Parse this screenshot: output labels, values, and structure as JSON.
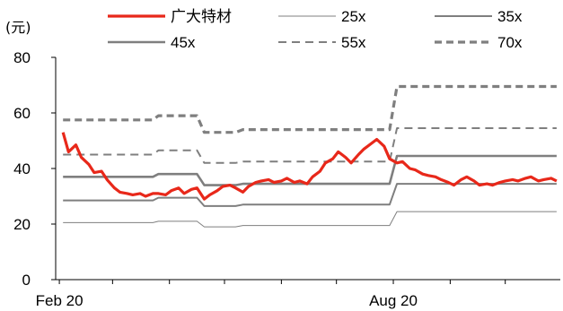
{
  "chart_data": {
    "type": "line",
    "unit_label": "(元)",
    "ylim": [
      0,
      80
    ],
    "yticks": [
      0,
      20,
      40,
      60,
      80
    ],
    "xtick_labels": [
      "Feb 20",
      "Aug 20"
    ],
    "grid": false,
    "legend_position": "top",
    "x": [
      "2020-02-03",
      "2020-02-06",
      "2020-02-10",
      "2020-02-13",
      "2020-02-17",
      "2020-02-20",
      "2020-02-24",
      "2020-02-27",
      "2020-03-02",
      "2020-03-05",
      "2020-03-09",
      "2020-03-12",
      "2020-03-16",
      "2020-03-19",
      "2020-03-23",
      "2020-03-26",
      "2020-03-30",
      "2020-04-02",
      "2020-04-06",
      "2020-04-09",
      "2020-04-13",
      "2020-04-16",
      "2020-04-20",
      "2020-04-23",
      "2020-04-27",
      "2020-04-30",
      "2020-05-04",
      "2020-05-07",
      "2020-05-11",
      "2020-05-14",
      "2020-05-18",
      "2020-05-21",
      "2020-05-25",
      "2020-05-28",
      "2020-06-01",
      "2020-06-04",
      "2020-06-08",
      "2020-06-11",
      "2020-06-15",
      "2020-06-18",
      "2020-06-22",
      "2020-06-25",
      "2020-06-29",
      "2020-07-02",
      "2020-07-06",
      "2020-07-09",
      "2020-07-13",
      "2020-07-16",
      "2020-07-20",
      "2020-07-23",
      "2020-07-27",
      "2020-07-30",
      "2020-08-03",
      "2020-08-06",
      "2020-08-10",
      "2020-08-13",
      "2020-08-17",
      "2020-08-20",
      "2020-08-24",
      "2020-08-27",
      "2020-08-31",
      "2020-09-03",
      "2020-09-07",
      "2020-09-10",
      "2020-09-14",
      "2020-09-17",
      "2020-09-21",
      "2020-09-24",
      "2020-09-28",
      "2020-10-01",
      "2020-10-05",
      "2020-10-08",
      "2020-10-12",
      "2020-10-15",
      "2020-10-19",
      "2020-10-22",
      "2020-10-26",
      "2020-10-29"
    ],
    "series": [
      {
        "name": "广大特材",
        "color": "#e8281a",
        "dash": "solid",
        "width": 3.2,
        "values": [
          53.0,
          46.0,
          48.5,
          44.0,
          41.5,
          38.5,
          39.0,
          36.0,
          33.0,
          31.5,
          31.0,
          30.5,
          31.0,
          30.0,
          31.0,
          31.0,
          30.5,
          32.0,
          33.0,
          31.0,
          32.5,
          33.0,
          29.0,
          30.5,
          32.0,
          33.5,
          34.0,
          33.0,
          31.5,
          33.5,
          35.0,
          35.5,
          36.0,
          35.0,
          35.5,
          36.5,
          35.0,
          35.5,
          34.5,
          37.0,
          39.0,
          42.0,
          43.5,
          46.0,
          44.0,
          42.0,
          45.0,
          47.0,
          49.0,
          50.5,
          48.0,
          43.5,
          42.0,
          42.5,
          40.0,
          39.5,
          38.0,
          37.5,
          37.0,
          36.0,
          35.0,
          34.0,
          36.0,
          37.0,
          35.5,
          34.0,
          34.5,
          34.0,
          35.0,
          35.5,
          36.0,
          35.5,
          36.5,
          37.0,
          35.5,
          36.0,
          36.5,
          35.5
        ]
      },
      {
        "name": "25x",
        "color": "#7f7f7f",
        "dash": "solid",
        "width": 1,
        "values": [
          20.5,
          20.5,
          20.5,
          20.5,
          20.5,
          20.5,
          20.5,
          20.5,
          20.5,
          20.5,
          20.5,
          20.5,
          20.5,
          20.5,
          20.5,
          21.0,
          21.0,
          21.0,
          21.0,
          21.0,
          21.0,
          21.0,
          19.0,
          19.0,
          19.0,
          19.0,
          19.0,
          19.0,
          19.5,
          19.5,
          19.5,
          19.5,
          19.5,
          19.5,
          19.5,
          19.5,
          19.5,
          19.5,
          19.5,
          19.5,
          19.5,
          19.5,
          19.5,
          19.5,
          19.5,
          19.5,
          19.5,
          19.5,
          19.5,
          19.5,
          19.5,
          19.5,
          24.5,
          24.5,
          24.5,
          24.5,
          24.5,
          24.5,
          24.5,
          24.5,
          24.5,
          24.5,
          24.5,
          24.5,
          24.5,
          24.5,
          24.5,
          24.5,
          24.5,
          24.5,
          24.5,
          24.5,
          24.5,
          24.5,
          24.5,
          24.5,
          24.5,
          24.5
        ]
      },
      {
        "name": "35x",
        "color": "#7f7f7f",
        "dash": "solid",
        "width": 2,
        "values": [
          28.5,
          28.5,
          28.5,
          28.5,
          28.5,
          28.5,
          28.5,
          28.5,
          28.5,
          28.5,
          28.5,
          28.5,
          28.5,
          28.5,
          28.5,
          29.5,
          29.5,
          29.5,
          29.5,
          29.5,
          29.5,
          29.5,
          26.5,
          26.5,
          26.5,
          26.5,
          26.5,
          26.5,
          27.0,
          27.0,
          27.0,
          27.0,
          27.0,
          27.0,
          27.0,
          27.0,
          27.0,
          27.0,
          27.0,
          27.0,
          27.0,
          27.0,
          27.0,
          27.0,
          27.0,
          27.0,
          27.0,
          27.0,
          27.0,
          27.0,
          27.0,
          27.0,
          34.5,
          34.5,
          34.5,
          34.5,
          34.5,
          34.5,
          34.5,
          34.5,
          34.5,
          34.5,
          34.5,
          34.5,
          34.5,
          34.5,
          34.5,
          34.5,
          34.5,
          34.5,
          34.5,
          34.5,
          34.5,
          34.5,
          34.5,
          34.5,
          34.5,
          34.5
        ]
      },
      {
        "name": "45x",
        "color": "#7f7f7f",
        "dash": "solid",
        "width": 2.6,
        "values": [
          37.0,
          37.0,
          37.0,
          37.0,
          37.0,
          37.0,
          37.0,
          37.0,
          37.0,
          37.0,
          37.0,
          37.0,
          37.0,
          37.0,
          37.0,
          38.0,
          38.0,
          38.0,
          38.0,
          38.0,
          38.0,
          38.0,
          34.0,
          34.0,
          34.0,
          34.0,
          34.0,
          34.0,
          34.5,
          34.5,
          34.5,
          34.5,
          34.5,
          34.5,
          34.5,
          34.5,
          34.5,
          34.5,
          34.5,
          34.5,
          34.5,
          34.5,
          34.5,
          34.5,
          34.5,
          34.5,
          34.5,
          34.5,
          34.5,
          34.5,
          34.5,
          34.5,
          44.5,
          44.5,
          44.5,
          44.5,
          44.5,
          44.5,
          44.5,
          44.5,
          44.5,
          44.5,
          44.5,
          44.5,
          44.5,
          44.5,
          44.5,
          44.5,
          44.5,
          44.5,
          44.5,
          44.5,
          44.5,
          44.5,
          44.5,
          44.5,
          44.5,
          44.5
        ]
      },
      {
        "name": "55x",
        "color": "#7f7f7f",
        "dash": "dashed",
        "width": 2,
        "values": [
          45.0,
          45.0,
          45.0,
          45.0,
          45.0,
          45.0,
          45.0,
          45.0,
          45.0,
          45.0,
          45.0,
          45.0,
          45.0,
          45.0,
          45.0,
          46.5,
          46.5,
          46.5,
          46.5,
          46.5,
          46.5,
          46.5,
          42.0,
          42.0,
          42.0,
          42.0,
          42.0,
          42.0,
          42.5,
          42.5,
          42.5,
          42.5,
          42.5,
          42.5,
          42.5,
          42.5,
          42.5,
          42.5,
          42.5,
          42.5,
          42.5,
          42.5,
          42.5,
          42.5,
          42.5,
          42.5,
          42.5,
          42.5,
          42.5,
          42.5,
          42.5,
          42.5,
          54.5,
          54.5,
          54.5,
          54.5,
          54.5,
          54.5,
          54.5,
          54.5,
          54.5,
          54.5,
          54.5,
          54.5,
          54.5,
          54.5,
          54.5,
          54.5,
          54.5,
          54.5,
          54.5,
          54.5,
          54.5,
          54.5,
          54.5,
          54.5,
          54.5,
          54.5
        ]
      },
      {
        "name": "70x",
        "color": "#7f7f7f",
        "dash": "dashed",
        "width": 3.2,
        "values": [
          57.5,
          57.5,
          57.5,
          57.5,
          57.5,
          57.5,
          57.5,
          57.5,
          57.5,
          57.5,
          57.5,
          57.5,
          57.5,
          57.5,
          57.5,
          59.0,
          59.0,
          59.0,
          59.0,
          59.0,
          59.0,
          59.0,
          53.0,
          53.0,
          53.0,
          53.0,
          53.0,
          53.0,
          54.0,
          54.0,
          54.0,
          54.0,
          54.0,
          54.0,
          54.0,
          54.0,
          54.0,
          54.0,
          54.0,
          54.0,
          54.0,
          54.0,
          54.0,
          54.0,
          54.0,
          54.0,
          54.0,
          54.0,
          54.0,
          54.0,
          54.0,
          54.0,
          69.5,
          69.5,
          69.5,
          69.5,
          69.5,
          69.5,
          69.5,
          69.5,
          69.5,
          69.5,
          69.5,
          69.5,
          69.5,
          69.5,
          69.5,
          69.5,
          69.5,
          69.5,
          69.5,
          69.5,
          69.5,
          69.5,
          69.5,
          69.5,
          69.5,
          69.5
        ]
      }
    ]
  }
}
